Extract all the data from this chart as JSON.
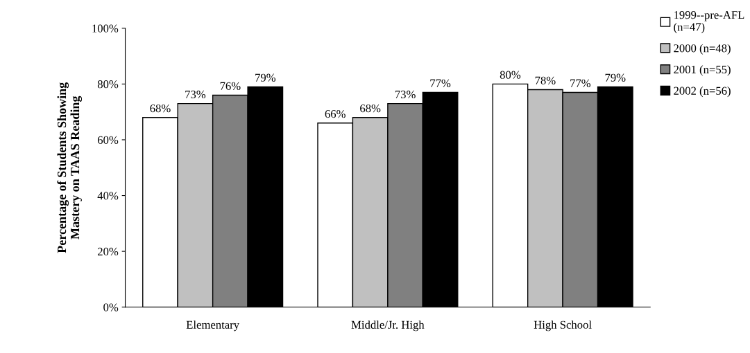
{
  "chart_data": {
    "type": "bar",
    "ylabel": "Percentage of Students Showing\nMastery on TAAS Reading",
    "categories": [
      "Elementary",
      "Middle/Jr. High",
      "High School"
    ],
    "series": [
      {
        "name": "1999--pre-AFL\n(n=47)",
        "color": "#ffffff",
        "values": [
          68,
          66,
          80
        ],
        "value_labels": [
          "68%",
          "66%",
          "80%"
        ]
      },
      {
        "name": "2000 (n=48)",
        "color": "#c0c0c0",
        "values": [
          73,
          68,
          78
        ],
        "value_labels": [
          "73%",
          "68%",
          "78%"
        ]
      },
      {
        "name": "2001 (n=55)",
        "color": "#808080",
        "values": [
          76,
          73,
          77
        ],
        "value_labels": [
          "76%",
          "73%",
          "77%"
        ]
      },
      {
        "name": "2002 (n=56)",
        "color": "#000000",
        "values": [
          79,
          77,
          79
        ],
        "value_labels": [
          "79%",
          "77%",
          "79%"
        ]
      }
    ],
    "ylim": [
      0,
      100
    ],
    "yticks": [
      {
        "value": 0,
        "label": "0%"
      },
      {
        "value": 20,
        "label": "20%"
      },
      {
        "value": 40,
        "label": "40%"
      },
      {
        "value": 60,
        "label": "60%"
      },
      {
        "value": 80,
        "label": "80%"
      },
      {
        "value": 100,
        "label": "100%"
      }
    ],
    "grid": false,
    "legend": "right"
  }
}
